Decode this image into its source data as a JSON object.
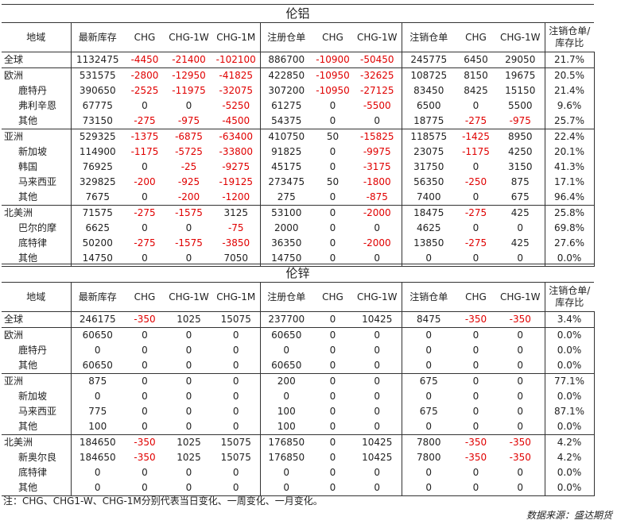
{
  "headers": [
    "地域",
    "最新库存",
    "CHG",
    "CHG-1W",
    "CHG-1M",
    "注册仓单",
    "CHG",
    "CHG-1W",
    "注销仓单",
    "CHG",
    "CHG-1W",
    "注销仓单/库存比"
  ],
  "tables": [
    {
      "title": "伦铝",
      "rows": [
        {
          "region": "全球",
          "level": 0,
          "cells": [
            "1132475",
            "-4450",
            "-21400",
            "-102100",
            "886700",
            "-10900",
            "-50450",
            "245775",
            "6450",
            "29050",
            "21.7%"
          ]
        },
        {
          "region": "欧洲",
          "level": 0,
          "cells": [
            "531575",
            "-2800",
            "-12950",
            "-41825",
            "422850",
            "-10950",
            "-32625",
            "108725",
            "8150",
            "19675",
            "20.5%"
          ]
        },
        {
          "region": "鹿特丹",
          "level": 1,
          "cells": [
            "390650",
            "-2525",
            "-11975",
            "-32075",
            "307200",
            "-10950",
            "-27125",
            "83450",
            "8425",
            "15150",
            "21.4%"
          ]
        },
        {
          "region": "弗利辛恩",
          "level": 1,
          "cells": [
            "67775",
            "0",
            "0",
            "-5250",
            "61275",
            "0",
            "-5500",
            "6500",
            "0",
            "5500",
            "9.6%"
          ]
        },
        {
          "region": "其他",
          "level": 1,
          "cells": [
            "73150",
            "-275",
            "-975",
            "-4500",
            "54375",
            "0",
            "0",
            "18775",
            "-275",
            "-975",
            "25.7%"
          ]
        },
        {
          "region": "亚洲",
          "level": 0,
          "cells": [
            "529325",
            "-1375",
            "-6875",
            "-63400",
            "410750",
            "50",
            "-15825",
            "118575",
            "-1425",
            "8950",
            "22.4%"
          ]
        },
        {
          "region": "新加坡",
          "level": 1,
          "cells": [
            "114900",
            "-1175",
            "-5725",
            "-33800",
            "91825",
            "0",
            "-9975",
            "23075",
            "-1175",
            "4250",
            "20.1%"
          ]
        },
        {
          "region": "韩国",
          "level": 1,
          "cells": [
            "76925",
            "0",
            "-25",
            "-9275",
            "45175",
            "0",
            "-3175",
            "31750",
            "0",
            "3150",
            "41.3%"
          ]
        },
        {
          "region": "马来西亚",
          "level": 1,
          "cells": [
            "329825",
            "-200",
            "-925",
            "-19125",
            "273475",
            "50",
            "-1800",
            "56350",
            "-250",
            "875",
            "17.1%"
          ]
        },
        {
          "region": "其他",
          "level": 1,
          "cells": [
            "7675",
            "0",
            "-200",
            "-1200",
            "275",
            "0",
            "-875",
            "7400",
            "0",
            "675",
            "96.4%"
          ]
        },
        {
          "region": "北美洲",
          "level": 0,
          "cells": [
            "71575",
            "-275",
            "-1575",
            "3125",
            "53100",
            "0",
            "-2000",
            "18475",
            "-275",
            "425",
            "25.8%"
          ]
        },
        {
          "region": "巴尔的摩",
          "level": 1,
          "cells": [
            "6625",
            "0",
            "0",
            "-75",
            "2000",
            "0",
            "0",
            "4625",
            "0",
            "0",
            "69.8%"
          ]
        },
        {
          "region": "底特律",
          "level": 1,
          "cells": [
            "50200",
            "-275",
            "-1575",
            "-3850",
            "36350",
            "0",
            "-2000",
            "13850",
            "-275",
            "425",
            "27.6%"
          ]
        },
        {
          "region": "其他",
          "level": 1,
          "cells": [
            "14750",
            "0",
            "0",
            "7050",
            "14750",
            "0",
            "0",
            "0",
            "0",
            "0",
            "0.0%"
          ]
        }
      ]
    },
    {
      "title": "伦锌",
      "rows": [
        {
          "region": "全球",
          "level": 0,
          "cells": [
            "246175",
            "-350",
            "1025",
            "15075",
            "237700",
            "0",
            "10425",
            "8475",
            "-350",
            "-350",
            "3.4%"
          ]
        },
        {
          "region": "欧洲",
          "level": 0,
          "cells": [
            "60650",
            "0",
            "0",
            "0",
            "60650",
            "0",
            "0",
            "0",
            "0",
            "0",
            "0.0%"
          ]
        },
        {
          "region": "鹿特丹",
          "level": 1,
          "cells": [
            "0",
            "0",
            "0",
            "0",
            "0",
            "0",
            "0",
            "0",
            "0",
            "0",
            "0.0%"
          ]
        },
        {
          "region": "其他",
          "level": 1,
          "cells": [
            "60650",
            "0",
            "0",
            "0",
            "60650",
            "0",
            "0",
            "0",
            "0",
            "0",
            "0.0%"
          ]
        },
        {
          "region": "亚洲",
          "level": 0,
          "cells": [
            "875",
            "0",
            "0",
            "0",
            "200",
            "0",
            "0",
            "675",
            "0",
            "0",
            "77.1%"
          ]
        },
        {
          "region": "新加坡",
          "level": 1,
          "cells": [
            "0",
            "0",
            "0",
            "0",
            "0",
            "0",
            "0",
            "0",
            "0",
            "0",
            "0.0%"
          ]
        },
        {
          "region": "马来西亚",
          "level": 1,
          "cells": [
            "775",
            "0",
            "0",
            "0",
            "100",
            "0",
            "0",
            "675",
            "0",
            "0",
            "87.1%"
          ]
        },
        {
          "region": "其他",
          "level": 1,
          "cells": [
            "100",
            "0",
            "0",
            "0",
            "100",
            "0",
            "0",
            "0",
            "0",
            "0",
            "0.0%"
          ]
        },
        {
          "region": "北美洲",
          "level": 0,
          "cells": [
            "184650",
            "-350",
            "1025",
            "15075",
            "176850",
            "0",
            "10425",
            "7800",
            "-350",
            "-350",
            "4.2%"
          ]
        },
        {
          "region": "新奥尔良",
          "level": 1,
          "cells": [
            "184650",
            "-350",
            "1025",
            "15075",
            "176850",
            "0",
            "10425",
            "7800",
            "-350",
            "-350",
            "4.2%"
          ]
        },
        {
          "region": "底特律",
          "level": 1,
          "cells": [
            "0",
            "0",
            "0",
            "0",
            "0",
            "0",
            "0",
            "0",
            "0",
            "0",
            "0.0%"
          ]
        },
        {
          "region": "其他",
          "level": 1,
          "cells": [
            "0",
            "0",
            "0",
            "0",
            "0",
            "0",
            "0",
            "0",
            "0",
            "0",
            "0.0%"
          ]
        }
      ]
    }
  ],
  "note": "注：CHG、CHG1-W、CHG-1M分别代表当日变化、一周变化、一月变化。",
  "source": "数据来源：盛达期货",
  "colors": {
    "negative": "#e00000",
    "text": "#222222",
    "border": "#333333"
  }
}
